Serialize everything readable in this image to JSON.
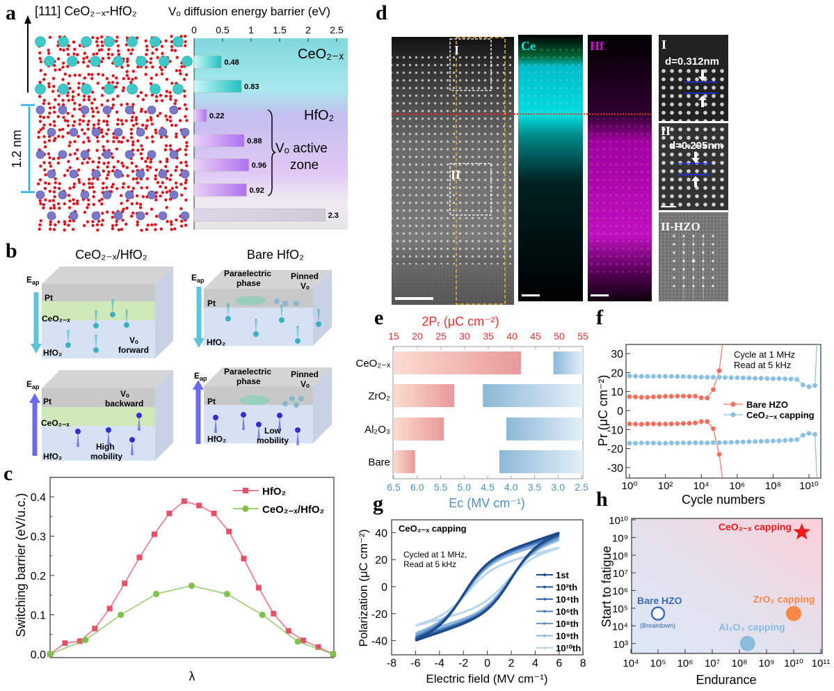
{
  "panel_labels": {
    "a": "a",
    "b": "b",
    "c": "c",
    "d": "d",
    "e": "e",
    "f": "f",
    "g": "g",
    "h": "h"
  },
  "panel_a": {
    "structure_title": "[111] CeO₂₋ₓ-HfO₂",
    "thickness_label": "1.2 nm",
    "region_ceo2": "CeO₂₋ₓ",
    "region_hfo2": "HfO₂",
    "active_zone_line1": "Vₒ active",
    "active_zone_line2": "zone",
    "colors": {
      "ce_atom": "#3ec8c8",
      "hf_atom": "#7a78c8",
      "o_atom": "#e0101a"
    }
  },
  "panel_b": {
    "title_left": "CeO₂₋ₓ/HfO₂",
    "title_right": "Bare HfO₂",
    "field_label": "E",
    "field_sub": "ap",
    "pt": "Pt",
    "ceo2": "CeO₂₋ₓ",
    "hfo2": "HfO₂",
    "vo_forward_1": "Vₒ",
    "vo_forward_2": "forward",
    "vo_backward_1": "Vₒ",
    "vo_backward_2": "backward",
    "high_mobility_1": "High",
    "high_mobility_2": "mobility",
    "paraelectric_1": "Paraelectric",
    "paraelectric_2": "phase",
    "pinned_1": "Pinned",
    "pinned_2": "Vₒ",
    "low_mobility_1": "Low",
    "low_mobility_2": "mobility",
    "colors": {
      "down_arrow": "#5cc4dc",
      "up_arrow": "#6a6af2",
      "pt": "#c8c8c8",
      "ceo2": "#cfe8b8",
      "hfo2": "#d6e2f4"
    }
  },
  "panel_d": {
    "ce_label": "Ce",
    "hf_label": "Hf",
    "region_I": "I",
    "region_II": "II",
    "inset_I_label": "I",
    "inset_I_d": "d=0.312nm",
    "inset_II_label": "II",
    "inset_II_d": "d=0.295nm",
    "fft_label": "II-HZO",
    "colors": {
      "ce": "#00e6e6",
      "hf": "#e000e0",
      "interface_line": "#ff2020",
      "box": "#f0b020"
    }
  },
  "chart_data": [
    {
      "panel": "a",
      "type": "bar",
      "orientation": "horizontal",
      "title": "Vₒ diffusion energy barrier (eV)",
      "xlim": [
        0,
        2.7
      ],
      "xticks": [
        "0",
        "0.5",
        "1",
        "1.5",
        "2",
        "2.5"
      ],
      "values": [
        0.48,
        0.83,
        0.22,
        0.88,
        0.96,
        0.92,
        2.3
      ],
      "value_labels": [
        "0.48",
        "0.83",
        "0.22",
        "0.88",
        "0.96",
        "0.92",
        "2.3"
      ],
      "bar_groups": [
        "CeO₂₋ₓ",
        "CeO₂₋ₓ",
        "HfO₂",
        "HfO₂",
        "HfO₂",
        "HfO₂",
        "HfO₂"
      ]
    },
    {
      "panel": "c",
      "type": "line",
      "xlabel": "λ",
      "ylabel": "Switching barrier (eV/u.c.)",
      "ylim": [
        0,
        0.45
      ],
      "yticks": [
        "0.0",
        "0.1",
        "0.2",
        "0.3",
        "0.4"
      ],
      "legend": "top-right",
      "series": [
        {
          "name": "HfO₂",
          "color": "#e8506a",
          "marker": "square",
          "x": [
            0,
            0.0526,
            0.1053,
            0.1579,
            0.2105,
            0.2632,
            0.3158,
            0.3684,
            0.4211,
            0.4737,
            0.5263,
            0.5789,
            0.6316,
            0.6842,
            0.7368,
            0.7895,
            0.8421,
            0.8947,
            0.9474,
            1
          ],
          "y": [
            0,
            0.028,
            0.033,
            0.065,
            0.116,
            0.18,
            0.246,
            0.305,
            0.358,
            0.389,
            0.378,
            0.358,
            0.312,
            0.243,
            0.169,
            0.103,
            0.059,
            0.035,
            0.018,
            0
          ]
        },
        {
          "name": "CeO₂₋ₓ/HfO₂",
          "color": "#80c050",
          "marker": "circle",
          "x": [
            0,
            0.125,
            0.25,
            0.375,
            0.5,
            0.625,
            0.75,
            0.875,
            1
          ],
          "y": [
            0,
            0.036,
            0.1,
            0.153,
            0.174,
            0.153,
            0.1,
            0.032,
            0
          ]
        }
      ]
    },
    {
      "panel": "e",
      "type": "bar",
      "orientation": "horizontal",
      "categories": [
        "CeO₂₋ₓ",
        "ZrO₂",
        "Al₂O₃",
        "Bare"
      ],
      "top_axis": {
        "label": "2Pᵣ (μC cm⁻²)",
        "range": [
          15,
          55
        ],
        "ticks": [
          "15",
          "20",
          "25",
          "30",
          "35",
          "40",
          "45",
          "50",
          "55"
        ],
        "color": "#e83030",
        "values": [
          41.9,
          27.8,
          25.6,
          19.5
        ]
      },
      "bottom_axis": {
        "label": "Eᴄ (MV cm⁻¹)",
        "range": [
          6.5,
          2.5
        ],
        "ticks": [
          "6.5",
          "6.0",
          "5.5",
          "5.0",
          "4.5",
          "4.0",
          "3.5",
          "3.0",
          "2.5"
        ],
        "color": "#4a90c0",
        "values": [
          3.1,
          4.6,
          4.1,
          4.25
        ]
      }
    },
    {
      "panel": "f",
      "type": "scatter",
      "xscale": "log",
      "xlabel": "Cycle numbers",
      "ylabel": "Pr (μC cm⁻²)",
      "xlim": [
        1,
        30000000000.0
      ],
      "ylim": [
        -35,
        35
      ],
      "xticks": [
        "10⁰",
        "10²",
        "10⁴",
        "10⁶",
        "10⁸",
        "10¹⁰"
      ],
      "yticks": [
        "30",
        "20",
        "10",
        "0",
        "-10",
        "-20",
        "-30"
      ],
      "annotation_1": "Cycle at 1 MHz",
      "annotation_2": "Read  at 5 kHz",
      "legend": "right",
      "series": [
        {
          "name": "Bare HZO",
          "color": "#f07060",
          "x": [
            1,
            2.15,
            4.64,
            10,
            21.5,
            46.4,
            100,
            215,
            464,
            1000,
            2150,
            4640,
            10000,
            21500,
            46400,
            100000
          ],
          "y_pos": [
            7.3,
            7.2,
            7,
            7,
            7.2,
            7.3,
            7.5,
            7.5,
            7.6,
            7.6,
            7.5,
            7.6,
            6.7,
            6.6,
            11,
            21
          ],
          "y_neg": [
            -7,
            -7.1,
            -7.2,
            -7,
            -7,
            -7.1,
            -7.1,
            -7,
            -6.9,
            -6.8,
            -6.7,
            -6.5,
            -5.8,
            -5.8,
            -9.5,
            -23
          ],
          "breakdown_after": 100000
        },
        {
          "name": "CeO₂₋ₓ capping",
          "color": "#8cc0e0",
          "x": [
            1,
            2.15,
            4.64,
            10,
            21.5,
            46.4,
            100,
            215,
            464,
            1000,
            2150,
            4640,
            10000,
            21500,
            46400,
            100000,
            215000,
            464000,
            1000000.0,
            2150000.0,
            4640000.0,
            10000000.0,
            21500000.0,
            46400000.0,
            100000000.0,
            215000000.0,
            464000000.0,
            1000000000.0,
            2150000000.0,
            4640000000.0,
            10000000000.0,
            21500000000.0
          ],
          "y_pos": [
            18.2,
            18.1,
            18,
            18,
            18,
            18,
            18,
            18,
            17.9,
            17.9,
            17.8,
            17.7,
            17.6,
            17.5,
            17.5,
            17.5,
            17.4,
            17.3,
            17.3,
            17.2,
            17.1,
            17,
            17,
            16.9,
            16.8,
            16.8,
            16.7,
            16.6,
            16.4,
            13.5,
            12.6,
            13.2
          ],
          "y_neg": [
            -17.2,
            -17.2,
            -17.1,
            -17.1,
            -17.1,
            -17.2,
            -17.2,
            -17.1,
            -17.1,
            -17,
            -17,
            -17,
            -17,
            -17,
            -16.9,
            -16.9,
            -16.8,
            -16.7,
            -16.6,
            -16.5,
            -16.4,
            -16.3,
            -16.2,
            -16.1,
            -16,
            -15.9,
            -15.7,
            -15.5,
            -15.3,
            -13,
            -12,
            -12.5
          ],
          "breakdown_after": 21500000000.0
        }
      ]
    },
    {
      "panel": "g",
      "type": "line",
      "title": "CeO₂₋ₓ capping",
      "annotation_1": "Cycled at 1 MHz,",
      "annotation_2": "Read at 5 kHz",
      "xlabel": "Electric field (MV cm⁻¹)",
      "ylabel": "Polarization (μC cm⁻²)",
      "xlim": [
        -8,
        8
      ],
      "ylim": [
        -50,
        50
      ],
      "xticks": [
        "-8",
        "-6",
        "-4",
        "-2",
        "0",
        "2",
        "4",
        "6",
        "8"
      ],
      "yticks": [
        "40",
        "20",
        "0",
        "-20",
        "-40"
      ],
      "legend": "bottom-right",
      "series": [
        {
          "name": "1st",
          "color": "#1e4a8a",
          "p_max": 40,
          "p_r": 17,
          "e_c": 2.0
        },
        {
          "name": "10²th",
          "color": "#2a5a9a",
          "p_max": 39.5,
          "p_r": 16.8,
          "e_c": 2.0
        },
        {
          "name": "10⁴th",
          "color": "#3a6cac",
          "p_max": 39,
          "p_r": 16.5,
          "e_c": 2.0
        },
        {
          "name": "10⁶th",
          "color": "#4a80bc",
          "p_max": 38,
          "p_r": 16,
          "e_c": 1.95
        },
        {
          "name": "10⁸th",
          "color": "#6898cc",
          "p_max": 37,
          "p_r": 15.5,
          "e_c": 1.9
        },
        {
          "name": "10⁹th",
          "color": "#8cb4dc",
          "p_max": 35,
          "p_r": 14,
          "e_c": 1.8
        },
        {
          "name": "10¹⁰th",
          "color": "#b8d6ec",
          "p_max": 29,
          "p_r": 10,
          "e_c": 1.6
        }
      ]
    },
    {
      "panel": "h",
      "type": "scatter",
      "xscale": "log",
      "yscale": "log",
      "xlabel": "Endurance",
      "ylabel": "Start to fatigue",
      "xlim": [
        10000.0,
        100000000000.0
      ],
      "ylim": [
        300.0,
        10000000000.0
      ],
      "xticks": [
        "10⁴",
        "10⁵",
        "10⁶",
        "10⁷",
        "10⁸",
        "10⁹",
        "10¹⁰",
        "10¹¹"
      ],
      "yticks": [
        "10¹⁰",
        "10⁹",
        "10⁸",
        "10⁷",
        "10⁶",
        "10⁵",
        "10⁴",
        "10³"
      ],
      "points": [
        {
          "label": "Bare HZO",
          "sublabel": "(Breakdown)",
          "x": 100000.0,
          "y": 50000.0,
          "color": "#3a6ab8",
          "marker": "open-circle"
        },
        {
          "label": "Al₂O₃ capping",
          "x": 200000000.0,
          "y": 1000.0,
          "color": "#8cbcdc",
          "marker": "circle"
        },
        {
          "label": "ZrO₂ capping",
          "x": 10000000000.0,
          "y": 50000.0,
          "color": "#f88848",
          "marker": "circle"
        },
        {
          "label": "CeO₂₋ₓ capping",
          "x": 20000000000.0,
          "y": 2000000000.0,
          "color": "#f01818",
          "marker": "star"
        }
      ]
    }
  ]
}
